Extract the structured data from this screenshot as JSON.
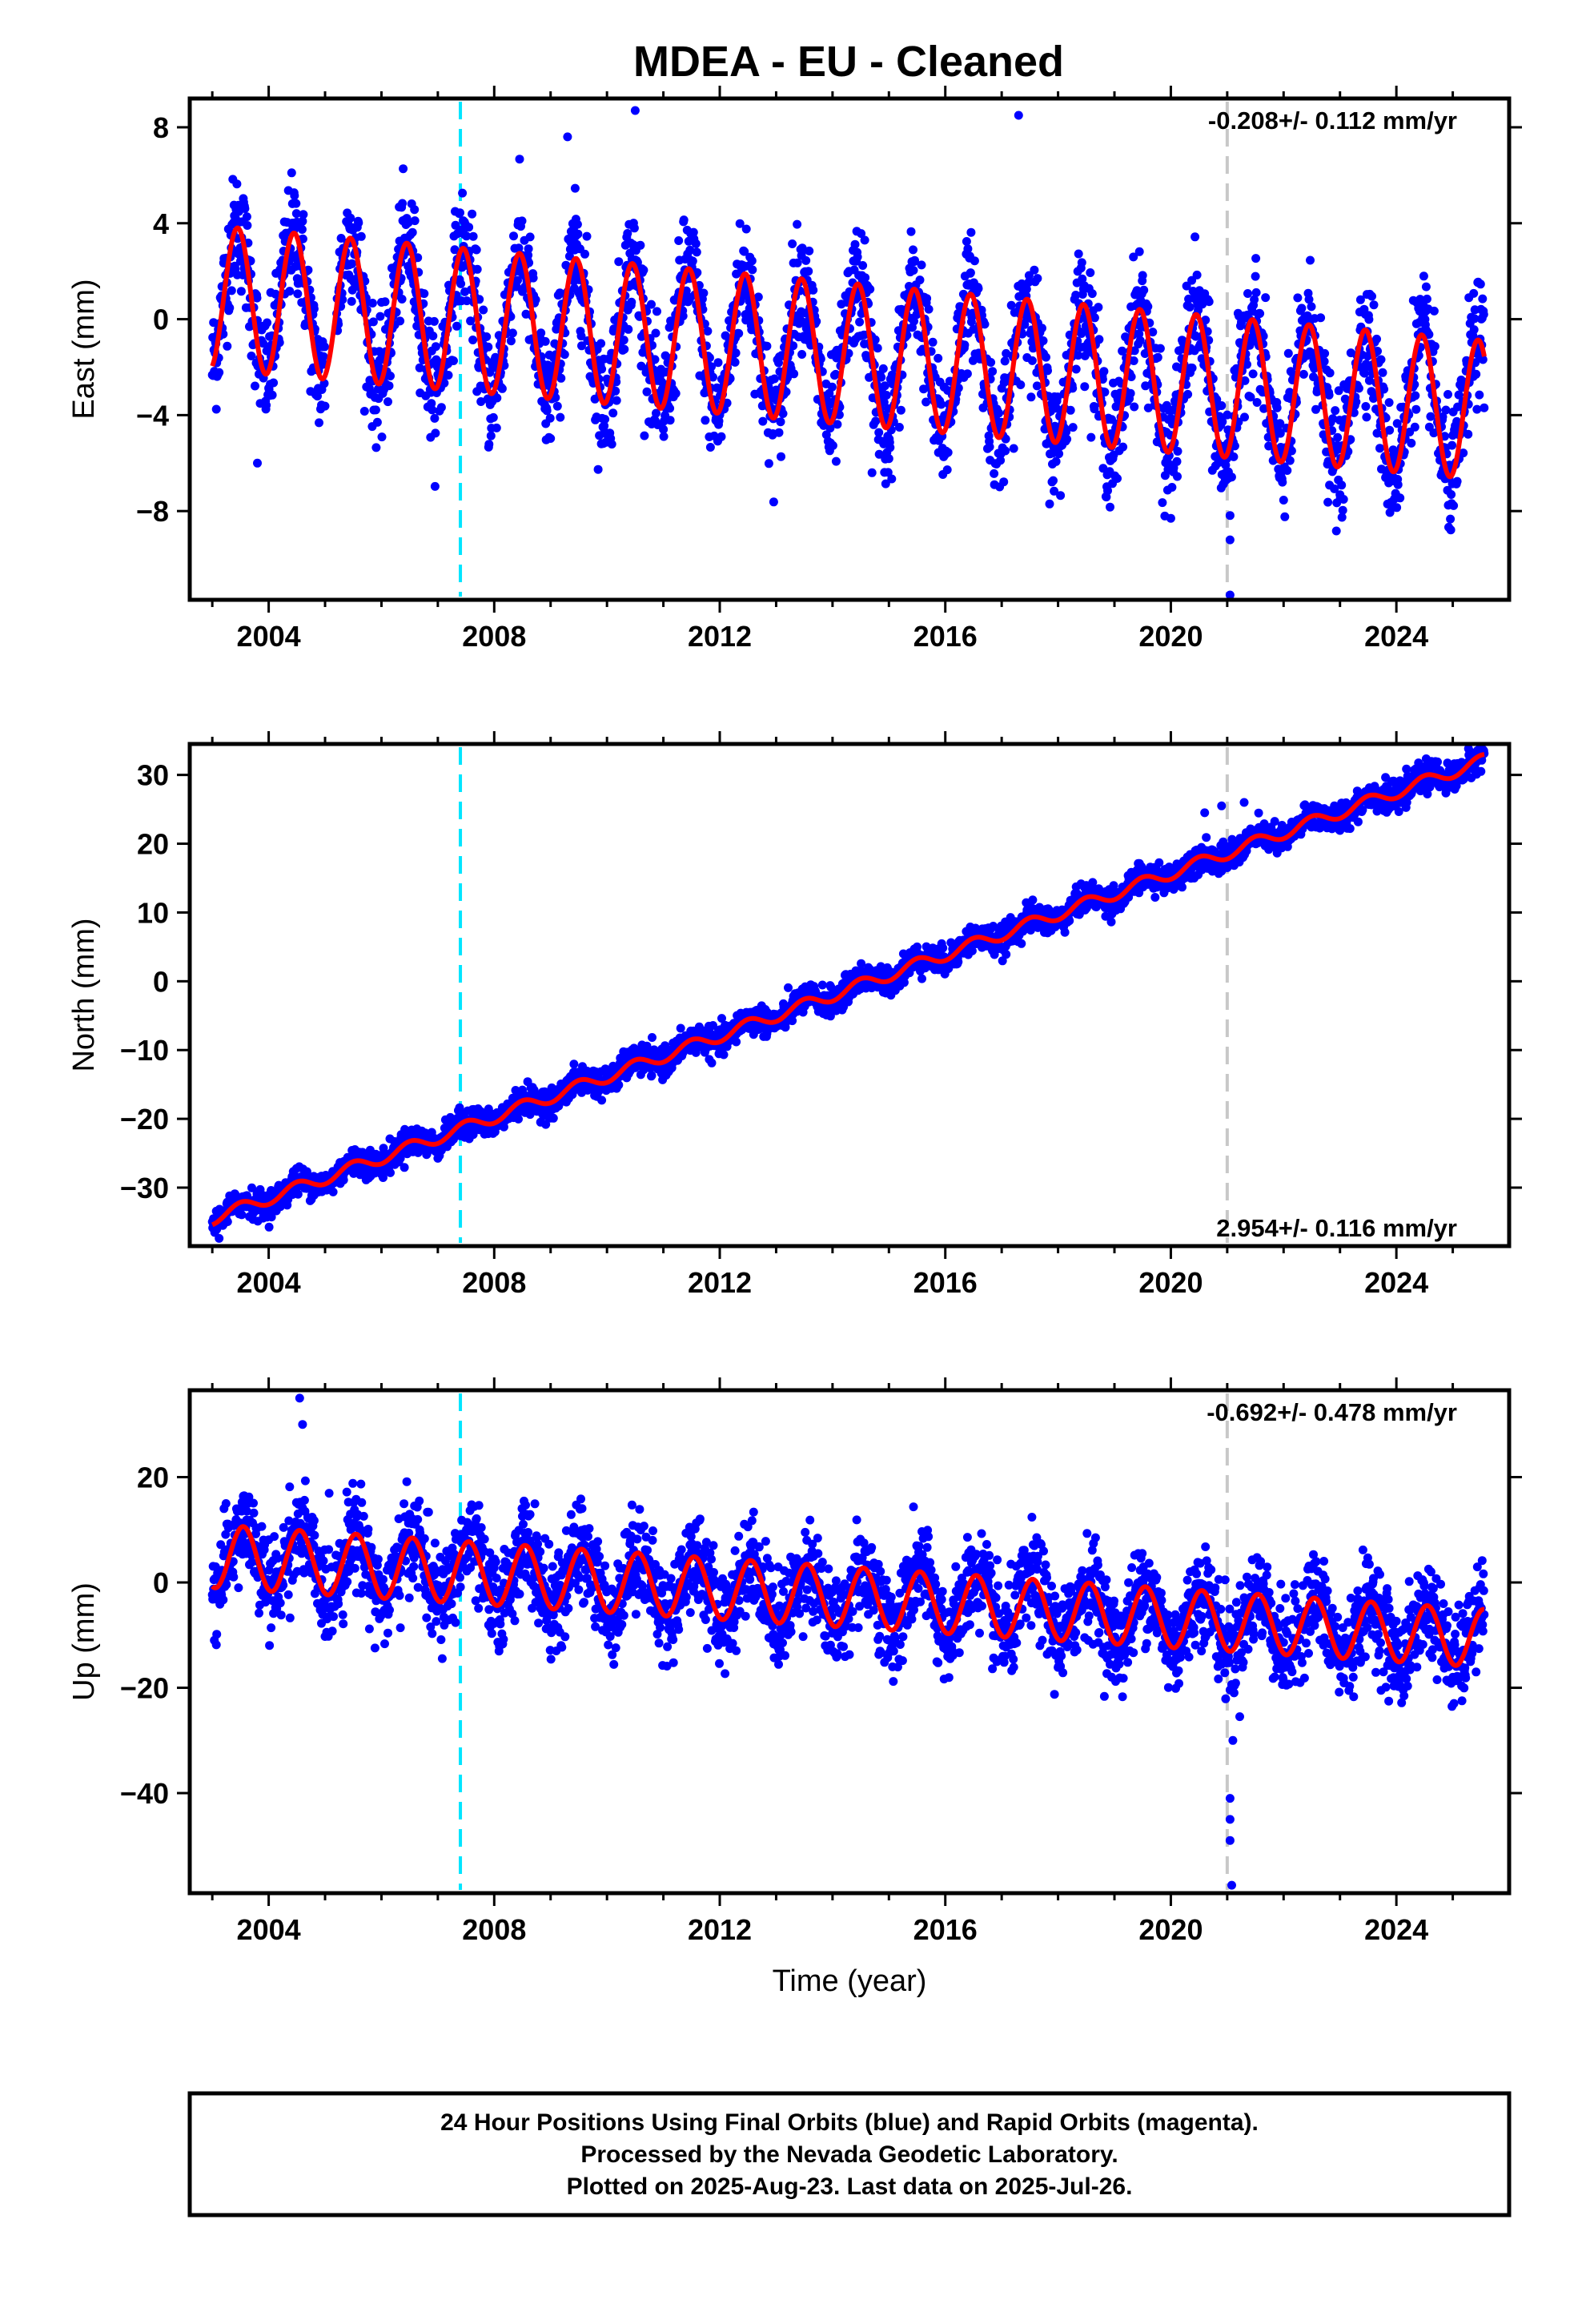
{
  "colors": {
    "points": "#0000ff",
    "model": "#ff0000",
    "antenna_change": "#00e5ff",
    "other_event": "#c8c8c8",
    "frame": "#000000"
  },
  "chart_data": [
    {
      "type": "scatter",
      "title": "MDEA  - EU - Cleaned",
      "ylabel": "East (mm)",
      "xlabel": "",
      "rate_text": "-0.208+/- 0.112 mm/yr",
      "rate_position": "top-right",
      "xlim": [
        2002.6,
        2026.0
      ],
      "ylim": [
        -11.7,
        9.2
      ],
      "xticks": [
        2004,
        2008,
        2012,
        2016,
        2020,
        2024
      ],
      "xtick_labels": [
        "2004",
        "2008",
        "2012",
        "2016",
        "2020",
        "2024"
      ],
      "yticks": [
        -8,
        -4,
        0,
        4,
        8
      ],
      "ytick_labels": [
        "−8",
        "−4",
        "0",
        "4",
        "8"
      ],
      "event_lines": [
        2007.4,
        2021.0
      ],
      "series": [
        {
          "values_kind": "daily positions (blue dots)",
          "x_range": [
            2003.0,
            2025.56
          ],
          "trend": {
            "intercept_2003": 0.9,
            "rate": -0.208
          },
          "seasonal_amplitude": {
            "start": 3.0,
            "end": 2.9
          },
          "seasonal_peak_phase": 0.45,
          "scatter_std": 1.2,
          "outliers": [
            [
              2010.5,
              8.7
            ],
            [
              2017.3,
              8.5
            ],
            [
              2009.3,
              7.6
            ],
            [
              2021.05,
              -11.5
            ],
            [
              2021.05,
              -9.2
            ],
            [
              2020.0,
              -8.3
            ],
            [
              2003.8,
              -6.0
            ],
            [
              2014.7,
              -6.4
            ]
          ]
        },
        {
          "values_kind": "model fit (red line)",
          "x_range": [
            2003.0,
            2025.56
          ],
          "trend": {
            "intercept_2003": 0.9,
            "rate": -0.208
          },
          "seasonal_amplitude": {
            "start": 3.0,
            "end": 2.9
          },
          "seasonal_peak_phase": 0.45
        }
      ]
    },
    {
      "type": "scatter",
      "title": "",
      "ylabel": "North (mm)",
      "xlabel": "",
      "rate_text": "2.954+/- 0.116 mm/yr",
      "rate_position": "bottom-right",
      "xlim": [
        2002.6,
        2026.0
      ],
      "ylim": [
        -38.5,
        34.5
      ],
      "xticks": [
        2004,
        2008,
        2012,
        2016,
        2020,
        2024
      ],
      "xtick_labels": [
        "2004",
        "2008",
        "2012",
        "2016",
        "2020",
        "2024"
      ],
      "yticks": [
        -30,
        -20,
        -10,
        0,
        10,
        20,
        30
      ],
      "ytick_labels": [
        "−30",
        "−20",
        "−10",
        "0",
        "10",
        "20",
        "30"
      ],
      "event_lines": [
        2007.4,
        2021.0
      ],
      "series": [
        {
          "values_kind": "daily positions (blue dots)",
          "x_range": [
            2003.0,
            2025.56
          ],
          "trend": {
            "intercept_2003": -34.5,
            "rate": 2.954
          },
          "seasonal_amplitude": {
            "start": 0.9,
            "end": 0.9
          },
          "seasonal_peak_phase": 0.5,
          "scatter_std": 1.0,
          "outliers": [
            [
              2020.6,
              24.5
            ],
            [
              2020.9,
              25.5
            ],
            [
              2021.3,
              26.0
            ]
          ]
        },
        {
          "values_kind": "model fit (red line)",
          "x_range": [
            2003.0,
            2025.56
          ],
          "trend": {
            "intercept_2003": -34.5,
            "rate": 2.954
          },
          "seasonal_amplitude": {
            "start": 0.9,
            "end": 0.9
          },
          "seasonal_peak_phase": 0.5
        }
      ]
    },
    {
      "type": "scatter",
      "title": "",
      "ylabel": "Up (mm)",
      "xlabel": "Time (year)",
      "rate_text": "-0.692+/- 0.478 mm/yr",
      "rate_position": "top-right",
      "xlim": [
        2002.6,
        2026.0
      ],
      "ylim": [
        -59.0,
        36.5
      ],
      "xticks": [
        2004,
        2008,
        2012,
        2016,
        2020,
        2024
      ],
      "xtick_labels": [
        "2004",
        "2008",
        "2012",
        "2016",
        "2020",
        "2024"
      ],
      "yticks": [
        -40,
        -20,
        0,
        20
      ],
      "ytick_labels": [
        "−40",
        "−20",
        "0",
        "20"
      ],
      "event_lines": [
        2007.4,
        2021.0
      ],
      "series": [
        {
          "values_kind": "daily positions (blue dots)",
          "x_range": [
            2003.0,
            2025.56
          ],
          "trend": {
            "intercept_2003": 5.0,
            "rate": -0.692
          },
          "seasonal_amplitude": {
            "start": 6.0,
            "end": 5.5
          },
          "seasonal_peak_phase": 0.55,
          "scatter_std": 4.5,
          "outliers": [
            [
              2004.55,
              35.0
            ],
            [
              2004.6,
              30.0
            ],
            [
              2021.05,
              -41.0
            ],
            [
              2021.05,
              -45.0
            ],
            [
              2021.05,
              -49.0
            ],
            [
              2021.08,
              -57.5
            ],
            [
              2021.1,
              -30.0
            ]
          ]
        },
        {
          "values_kind": "model fit (red line)",
          "x_range": [
            2003.0,
            2025.56
          ],
          "trend": {
            "intercept_2003": 5.0,
            "rate": -0.692
          },
          "seasonal_amplitude": {
            "start": 6.0,
            "end": 5.5
          },
          "seasonal_peak_phase": 0.55
        }
      ]
    }
  ],
  "footer": {
    "line1": "24 Hour Positions Using Final Orbits (blue) and Rapid Orbits (magenta).",
    "line2": "Processed by the Nevada Geodetic Laboratory.",
    "line3": "Plotted on 2025-Aug-23. Last data on 2025-Jul-26."
  }
}
